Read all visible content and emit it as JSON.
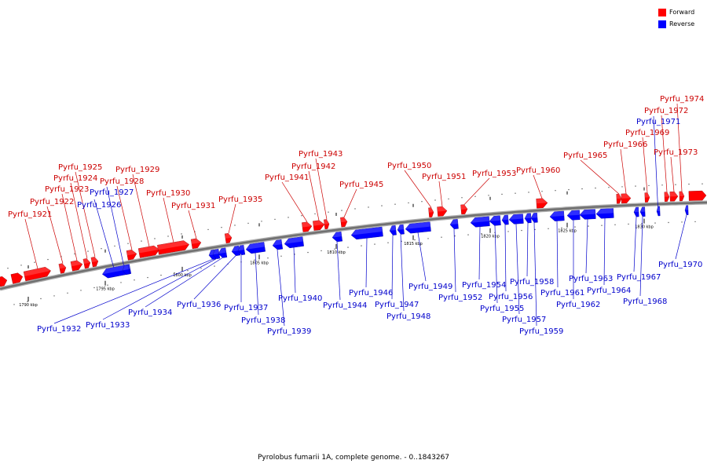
{
  "caption": "Pyrolobus fumarii 1A, complete genome. - 0..1843267",
  "legend": [
    {
      "label": "Forward",
      "color": "#ff0000"
    },
    {
      "label": "Reverse",
      "color": "#0000ff"
    }
  ],
  "colors": {
    "forward": "#ff0000",
    "reverse": "#0000ff",
    "forward_line": "#cc0000",
    "reverse_line": "#0000cc"
  },
  "ticks": [
    {
      "label": "1790 kbp",
      "pos_kbp": 1790
    },
    {
      "label": "1795 kbp",
      "pos_kbp": 1795
    },
    {
      "label": "1800 kbp",
      "pos_kbp": 1800
    },
    {
      "label": "1805 kbp",
      "pos_kbp": 1805
    },
    {
      "label": "1810 kbp",
      "pos_kbp": 1810
    },
    {
      "label": "1815 kbp",
      "pos_kbp": 1815
    },
    {
      "label": "1820 kbp",
      "pos_kbp": 1820
    },
    {
      "label": "1825 kbp",
      "pos_kbp": 1825
    },
    {
      "label": "1830 kbp",
      "pos_kbp": 1830
    }
  ],
  "genes": [
    {
      "name": "Pyrfu_1921",
      "strand": "forward"
    },
    {
      "name": "Pyrfu_1922",
      "strand": "forward"
    },
    {
      "name": "Pyrfu_1923",
      "strand": "forward"
    },
    {
      "name": "Pyrfu_1924",
      "strand": "forward"
    },
    {
      "name": "Pyrfu_1925",
      "strand": "forward"
    },
    {
      "name": "Pyrfu_1926",
      "strand": "reverse"
    },
    {
      "name": "Pyrfu_1927",
      "strand": "reverse"
    },
    {
      "name": "Pyrfu_1928",
      "strand": "forward"
    },
    {
      "name": "Pyrfu_1929",
      "strand": "forward"
    },
    {
      "name": "Pyrfu_1930",
      "strand": "forward"
    },
    {
      "name": "Pyrfu_1931",
      "strand": "forward"
    },
    {
      "name": "Pyrfu_1932",
      "strand": "reverse"
    },
    {
      "name": "Pyrfu_1933",
      "strand": "reverse"
    },
    {
      "name": "Pyrfu_1934",
      "strand": "reverse"
    },
    {
      "name": "Pyrfu_1935",
      "strand": "forward"
    },
    {
      "name": "Pyrfu_1936",
      "strand": "reverse"
    },
    {
      "name": "Pyrfu_1937",
      "strand": "reverse"
    },
    {
      "name": "Pyrfu_1938",
      "strand": "reverse"
    },
    {
      "name": "Pyrfu_1939",
      "strand": "reverse"
    },
    {
      "name": "Pyrfu_1940",
      "strand": "reverse"
    },
    {
      "name": "Pyrfu_1941",
      "strand": "forward"
    },
    {
      "name": "Pyrfu_1942",
      "strand": "forward"
    },
    {
      "name": "Pyrfu_1943",
      "strand": "forward"
    },
    {
      "name": "Pyrfu_1944",
      "strand": "reverse"
    },
    {
      "name": "Pyrfu_1945",
      "strand": "forward"
    },
    {
      "name": "Pyrfu_1946",
      "strand": "reverse"
    },
    {
      "name": "Pyrfu_1947",
      "strand": "reverse"
    },
    {
      "name": "Pyrfu_1948",
      "strand": "reverse"
    },
    {
      "name": "Pyrfu_1949",
      "strand": "reverse"
    },
    {
      "name": "Pyrfu_1950",
      "strand": "forward"
    },
    {
      "name": "Pyrfu_1951",
      "strand": "forward"
    },
    {
      "name": "Pyrfu_1952",
      "strand": "reverse"
    },
    {
      "name": "Pyrfu_1953",
      "strand": "forward"
    },
    {
      "name": "Pyrfu_1954",
      "strand": "reverse"
    },
    {
      "name": "Pyrfu_1955",
      "strand": "reverse"
    },
    {
      "name": "Pyrfu_1956",
      "strand": "reverse"
    },
    {
      "name": "Pyrfu_1957",
      "strand": "reverse"
    },
    {
      "name": "Pyrfu_1958",
      "strand": "reverse"
    },
    {
      "name": "Pyrfu_1959",
      "strand": "reverse"
    },
    {
      "name": "Pyrfu_1960",
      "strand": "forward"
    },
    {
      "name": "Pyrfu_1961",
      "strand": "reverse"
    },
    {
      "name": "Pyrfu_1962",
      "strand": "reverse"
    },
    {
      "name": "Pyrfu_1963",
      "strand": "reverse"
    },
    {
      "name": "Pyrfu_1964",
      "strand": "reverse"
    },
    {
      "name": "Pyrfu_1965",
      "strand": "forward"
    },
    {
      "name": "Pyrfu_1966",
      "strand": "forward"
    },
    {
      "name": "Pyrfu_1967",
      "strand": "reverse"
    },
    {
      "name": "Pyrfu_1968",
      "strand": "reverse"
    },
    {
      "name": "Pyrfu_1969",
      "strand": "forward"
    },
    {
      "name": "Pyrfu_1970",
      "strand": "reverse"
    },
    {
      "name": "Pyrfu_1971",
      "strand": "reverse"
    },
    {
      "name": "Pyrfu_1972",
      "strand": "forward"
    },
    {
      "name": "Pyrfu_1973",
      "strand": "forward"
    },
    {
      "name": "Pyrfu_1974",
      "strand": "forward"
    }
  ]
}
